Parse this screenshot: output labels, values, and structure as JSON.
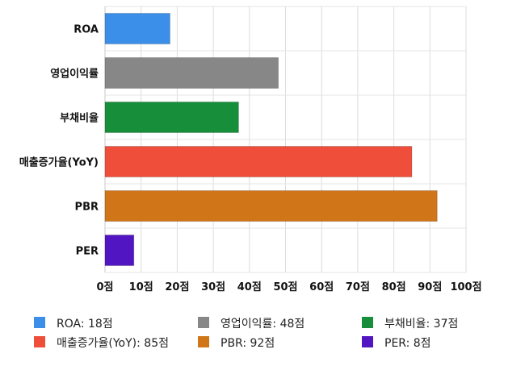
{
  "chart_data": {
    "type": "bar",
    "orientation": "horizontal",
    "title": "",
    "xlabel": "",
    "ylabel": "",
    "categories": [
      "ROA",
      "영업이익률",
      "부채비율",
      "매출증가율(YoY)",
      "PBR",
      "PER"
    ],
    "values": [
      18,
      48,
      37,
      85,
      92,
      8
    ],
    "colors": [
      "#3b8fe8",
      "#878787",
      "#178f3a",
      "#ef4f3a",
      "#d07618",
      "#5115c2"
    ],
    "xlim": [
      0,
      100
    ],
    "x_ticks": [
      0,
      10,
      20,
      30,
      40,
      50,
      60,
      70,
      80,
      90,
      100
    ],
    "x_tick_labels": [
      "0점",
      "10점",
      "20점",
      "30점",
      "40점",
      "50점",
      "60점",
      "70점",
      "80점",
      "90점",
      "100점"
    ],
    "grid": true,
    "legend_position": "bottom",
    "legend": [
      {
        "label": "ROA: 18점",
        "color": "#3b8fe8"
      },
      {
        "label": "영업이익률: 48점",
        "color": "#878787"
      },
      {
        "label": "부채비율: 37점",
        "color": "#178f3a"
      },
      {
        "label": "매출증가율(YoY): 85점",
        "color": "#ef4f3a"
      },
      {
        "label": "PBR: 92점",
        "color": "#d07618"
      },
      {
        "label": "PER: 8점",
        "color": "#5115c2"
      }
    ]
  }
}
